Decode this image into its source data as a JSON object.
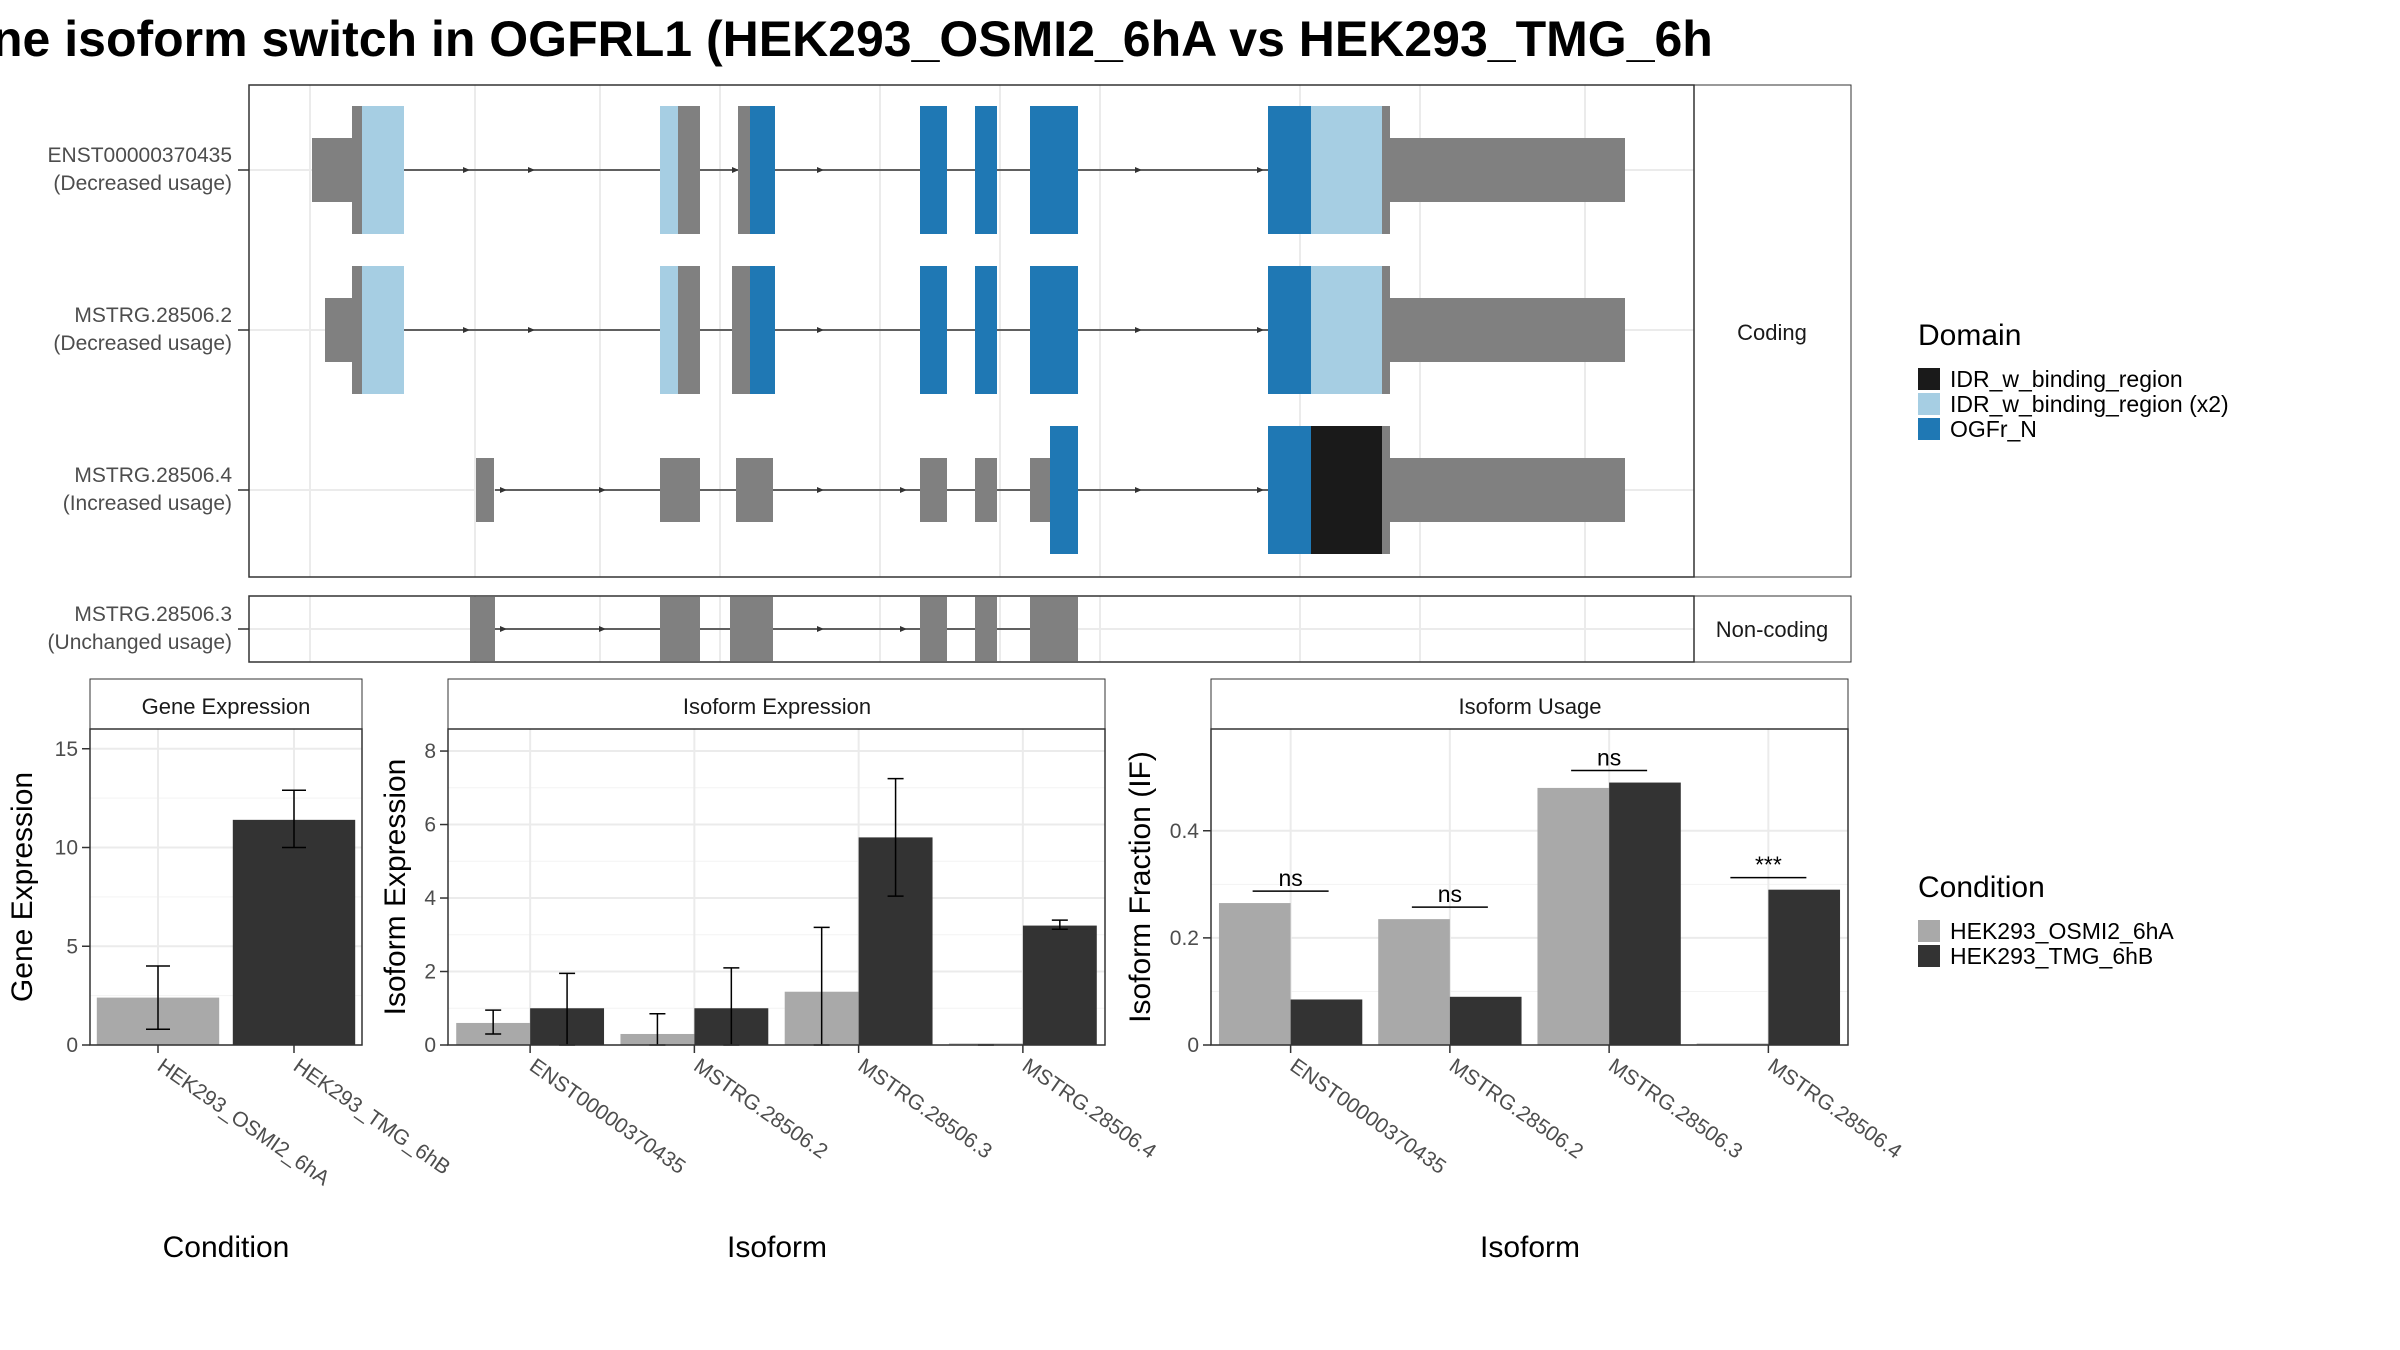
{
  "title": "ne isoform switch in OGFRL1 (HEK293_OSMI2_6hA vs HEK293_TMG_6h",
  "colors": {
    "exon": "#808080",
    "domain_idr": "#1a1a1a",
    "domain_idr_x2": "#a6cee3",
    "domain_ogfr": "#1f78b4",
    "cond_a": "#a9a9a9",
    "cond_b": "#333333"
  },
  "transcripts": {
    "facets": [
      "Coding",
      "Non-coding"
    ],
    "items": [
      {
        "id": "ENST00000370435",
        "label": "ENST00000370435",
        "usage": "(Decreased usage)",
        "facet": "Coding"
      },
      {
        "id": "MSTRG.28506.2",
        "label": "MSTRG.28506.2",
        "usage": "(Decreased usage)",
        "facet": "Coding"
      },
      {
        "id": "MSTRG.28506.4",
        "label": "MSTRG.28506.4",
        "usage": "(Increased usage)",
        "facet": "Coding"
      },
      {
        "id": "MSTRG.28506.3",
        "label": "MSTRG.28506.3",
        "usage": "(Unchanged usage)",
        "facet": "Non-coding"
      }
    ]
  },
  "legend": {
    "domain_title": "Domain",
    "domain_items": [
      {
        "label": "IDR_w_binding_region",
        "color": "#1a1a1a"
      },
      {
        "label": "IDR_w_binding_region (x2)",
        "color": "#a6cee3"
      },
      {
        "label": "OGFr_N",
        "color": "#1f78b4"
      }
    ],
    "condition_title": "Condition",
    "condition_items": [
      {
        "label": "HEK293_OSMI2_6hA",
        "color": "#a9a9a9"
      },
      {
        "label": "HEK293_TMG_6hB",
        "color": "#333333"
      }
    ]
  },
  "chart_data": [
    {
      "type": "bar",
      "title": "Gene Expression",
      "xlabel": "Condition",
      "ylabel": "Gene Expression",
      "ylim": [
        0,
        16
      ],
      "yticks": [
        0,
        5,
        10,
        15
      ],
      "categories": [
        "HEK293_OSMI2_6hA",
        "HEK293_TMG_6hB"
      ],
      "values": [
        2.4,
        11.4
      ],
      "errors": [
        [
          0.8,
          4.0
        ],
        [
          10.0,
          12.9
        ]
      ],
      "colors": [
        "#a9a9a9",
        "#333333"
      ]
    },
    {
      "type": "bar",
      "title": "Isoform Expression",
      "xlabel": "Isoform",
      "ylabel": "Isoform Expression",
      "ylim": [
        0,
        8.6
      ],
      "yticks": [
        0,
        2,
        4,
        6,
        8
      ],
      "categories": [
        "ENST00000370435",
        "MSTRG.28506.2",
        "MSTRG.28506.3",
        "MSTRG.28506.4"
      ],
      "series": [
        {
          "name": "HEK293_OSMI2_6hA",
          "values": [
            0.6,
            0.3,
            1.45,
            0.0
          ],
          "errors": [
            [
              0.3,
              0.95
            ],
            [
              0.0,
              0.85
            ],
            [
              0.0,
              3.2
            ],
            [
              0.0,
              0.0
            ]
          ]
        },
        {
          "name": "HEK293_TMG_6hB",
          "values": [
            1.0,
            1.0,
            5.65,
            3.25
          ],
          "errors": [
            [
              0.0,
              1.95
            ],
            [
              0.0,
              2.1
            ],
            [
              4.05,
              7.25
            ],
            [
              3.15,
              3.4
            ]
          ]
        }
      ]
    },
    {
      "type": "bar",
      "title": "Isoform Usage",
      "xlabel": "Isoform",
      "ylabel": "Isoform Fraction (IF)",
      "ylim": [
        0,
        0.59
      ],
      "yticks": [
        0.0,
        0.2,
        0.4
      ],
      "categories": [
        "ENST00000370435",
        "MSTRG.28506.2",
        "MSTRG.28506.3",
        "MSTRG.28506.4"
      ],
      "series": [
        {
          "name": "HEK293_OSMI2_6hA",
          "values": [
            0.265,
            0.235,
            0.48,
            0.0
          ]
        },
        {
          "name": "HEK293_TMG_6hB",
          "values": [
            0.085,
            0.09,
            0.49,
            0.29
          ]
        }
      ],
      "significance": [
        "ns",
        "ns",
        "ns",
        "***"
      ]
    }
  ]
}
